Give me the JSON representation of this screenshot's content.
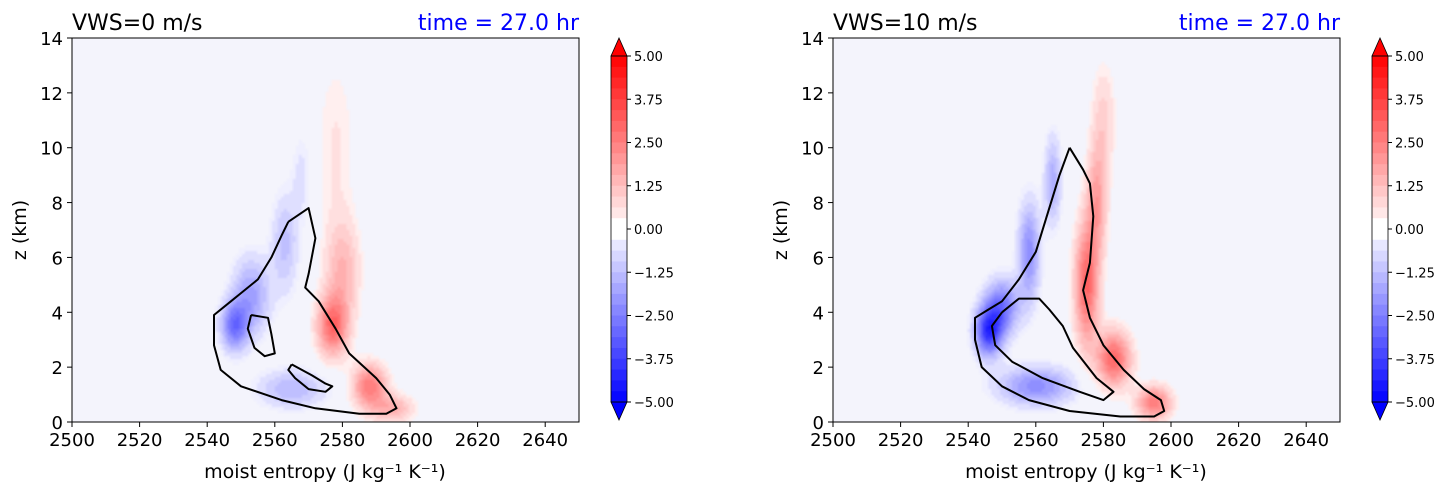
{
  "chart_data": [
    {
      "type": "heatmap",
      "title": "VWS=0 m/s",
      "time_label": "time = 27.0 hr",
      "xlabel": "moist entropy",
      "xlabel_unit": "(J kg⁻¹ K⁻¹)",
      "ylabel": "z (km)",
      "xlim": [
        2500,
        2650
      ],
      "ylim": [
        0,
        14
      ],
      "xticks": [
        "2500",
        "2520",
        "2540",
        "2560",
        "2580",
        "2600",
        "2620",
        "2640"
      ],
      "yticks": [
        "0",
        "2",
        "4",
        "6",
        "8",
        "10",
        "12",
        "14"
      ],
      "colorbar": {
        "range": [
          -5,
          5
        ],
        "ticks": [
          "5.00",
          "3.75",
          "2.50",
          "1.25",
          "0.00",
          "−1.25",
          "−2.50",
          "−3.75",
          "−5.00"
        ],
        "low_color": "#0000ff",
        "mid_color": "#ffffff",
        "high_color": "#ff0000"
      },
      "blobs": [
        {
          "sign": -1,
          "amp": 2.6,
          "x": 2548,
          "y": 3.5,
          "sx": 4.0,
          "sy": 0.9,
          "rot": 0
        },
        {
          "sign": -1,
          "amp": 1.8,
          "x": 2553,
          "y": 4.6,
          "sx": 5.5,
          "sy": 1.4,
          "rot": 25
        },
        {
          "sign": -1,
          "amp": 1.2,
          "x": 2563,
          "y": 6.5,
          "sx": 4.0,
          "sy": 1.8,
          "rot": 20
        },
        {
          "sign": -1,
          "amp": 0.6,
          "x": 2568,
          "y": 9.0,
          "sx": 3.0,
          "sy": 1.6,
          "rot": 10
        },
        {
          "sign": -1,
          "amp": 1.4,
          "x": 2565,
          "y": 1.2,
          "sx": 10.0,
          "sy": 0.7,
          "rot": -15
        },
        {
          "sign": 1,
          "amp": 2.8,
          "x": 2577,
          "y": 3.5,
          "sx": 4.5,
          "sy": 1.1,
          "rot": -35
        },
        {
          "sign": 1,
          "amp": 2.6,
          "x": 2588,
          "y": 1.3,
          "sx": 5.0,
          "sy": 0.8,
          "rot": -30
        },
        {
          "sign": 1,
          "amp": 1.5,
          "x": 2595,
          "y": 0.5,
          "sx": 6.0,
          "sy": 0.5,
          "rot": 0
        },
        {
          "sign": 1,
          "amp": 1.4,
          "x": 2580,
          "y": 5.5,
          "sx": 5.0,
          "sy": 1.8,
          "rot": -20
        },
        {
          "sign": 1,
          "amp": 0.5,
          "x": 2578,
          "y": 10.0,
          "sx": 6.0,
          "sy": 3.5,
          "rot": 0
        }
      ],
      "contours": [
        [
          [
            2564,
            7.3
          ],
          [
            2570,
            7.8
          ],
          [
            2572,
            6.7
          ],
          [
            2570,
            5.4
          ],
          [
            2569,
            4.9
          ],
          [
            2573,
            4.4
          ],
          [
            2578,
            3.4
          ],
          [
            2582,
            2.5
          ],
          [
            2590,
            1.6
          ],
          [
            2594,
            1.0
          ],
          [
            2596,
            0.5
          ],
          [
            2593,
            0.3
          ],
          [
            2585,
            0.3
          ],
          [
            2572,
            0.5
          ],
          [
            2562,
            0.8
          ],
          [
            2550,
            1.3
          ],
          [
            2544,
            1.9
          ],
          [
            2542,
            2.8
          ],
          [
            2542,
            3.9
          ],
          [
            2547,
            4.4
          ],
          [
            2550,
            4.7
          ],
          [
            2555,
            5.2
          ],
          [
            2559,
            6.0
          ],
          [
            2562,
            6.8
          ],
          [
            2564,
            7.3
          ]
        ],
        [
          [
            2553,
            3.9
          ],
          [
            2558,
            3.8
          ],
          [
            2559,
            3.2
          ],
          [
            2560,
            2.5
          ],
          [
            2557,
            2.4
          ],
          [
            2554,
            2.7
          ],
          [
            2552,
            3.4
          ],
          [
            2553,
            3.9
          ]
        ],
        [
          [
            2565,
            2.1
          ],
          [
            2571,
            1.7
          ],
          [
            2575,
            1.4
          ],
          [
            2577,
            1.3
          ],
          [
            2575,
            1.1
          ],
          [
            2570,
            1.2
          ],
          [
            2566,
            1.6
          ],
          [
            2564,
            1.9
          ],
          [
            2565,
            2.1
          ]
        ]
      ]
    },
    {
      "type": "heatmap",
      "title": "VWS=10 m/s",
      "time_label": "time = 27.0 hr",
      "xlabel": "moist entropy",
      "xlabel_unit": "(J kg⁻¹ K⁻¹)",
      "ylabel": "z (km)",
      "xlim": [
        2500,
        2650
      ],
      "ylim": [
        0,
        14
      ],
      "xticks": [
        "2500",
        "2520",
        "2540",
        "2560",
        "2580",
        "2600",
        "2620",
        "2640"
      ],
      "yticks": [
        "0",
        "2",
        "4",
        "6",
        "8",
        "10",
        "12",
        "14"
      ],
      "colorbar": {
        "range": [
          -5,
          5
        ],
        "ticks": [
          "5.00",
          "3.75",
          "2.50",
          "1.25",
          "0.00",
          "−1.25",
          "−2.50",
          "−3.75",
          "−5.00"
        ],
        "low_color": "#0000ff",
        "mid_color": "#ffffff",
        "high_color": "#ff0000"
      },
      "blobs": [
        {
          "sign": -1,
          "amp": 3.8,
          "x": 2546,
          "y": 3.3,
          "sx": 4.0,
          "sy": 0.9,
          "rot": 0
        },
        {
          "sign": -1,
          "amp": 2.6,
          "x": 2550,
          "y": 4.2,
          "sx": 5.0,
          "sy": 1.0,
          "rot": 30
        },
        {
          "sign": -1,
          "amp": 2.2,
          "x": 2558,
          "y": 6.2,
          "sx": 3.2,
          "sy": 1.8,
          "rot": 20
        },
        {
          "sign": -1,
          "amp": 1.6,
          "x": 2565,
          "y": 8.8,
          "sx": 2.5,
          "sy": 1.6,
          "rot": 10
        },
        {
          "sign": -1,
          "amp": 2.2,
          "x": 2560,
          "y": 1.3,
          "sx": 11.0,
          "sy": 0.7,
          "rot": -12
        },
        {
          "sign": 1,
          "amp": 3.0,
          "x": 2575,
          "y": 5.0,
          "sx": 3.5,
          "sy": 2.2,
          "rot": -15
        },
        {
          "sign": 1,
          "amp": 3.0,
          "x": 2583,
          "y": 2.3,
          "sx": 5.0,
          "sy": 1.0,
          "rot": -35
        },
        {
          "sign": 1,
          "amp": 2.6,
          "x": 2595,
          "y": 0.7,
          "sx": 5.0,
          "sy": 0.6,
          "rot": -10
        },
        {
          "sign": 1,
          "amp": 1.8,
          "x": 2578,
          "y": 8.0,
          "sx": 3.0,
          "sy": 2.0,
          "rot": 0
        },
        {
          "sign": 1,
          "amp": 0.9,
          "x": 2580,
          "y": 11.0,
          "sx": 3.5,
          "sy": 2.0,
          "rot": 0
        }
      ],
      "contours": [
        [
          [
            2570,
            10.0
          ],
          [
            2574,
            9.2
          ],
          [
            2576,
            8.7
          ],
          [
            2577,
            7.5
          ],
          [
            2576,
            5.8
          ],
          [
            2574,
            4.8
          ],
          [
            2576,
            3.8
          ],
          [
            2580,
            2.8
          ],
          [
            2586,
            1.9
          ],
          [
            2592,
            1.2
          ],
          [
            2597,
            0.8
          ],
          [
            2598,
            0.4
          ],
          [
            2595,
            0.2
          ],
          [
            2585,
            0.2
          ],
          [
            2570,
            0.4
          ],
          [
            2558,
            0.8
          ],
          [
            2550,
            1.3
          ],
          [
            2544,
            2.0
          ],
          [
            2542,
            3.0
          ],
          [
            2542,
            3.8
          ],
          [
            2546,
            4.1
          ],
          [
            2550,
            4.4
          ],
          [
            2555,
            5.2
          ],
          [
            2560,
            6.2
          ],
          [
            2564,
            7.8
          ],
          [
            2567,
            9.0
          ],
          [
            2570,
            10.0
          ]
        ],
        [
          [
            2550,
            4.0
          ],
          [
            2555,
            4.5
          ],
          [
            2561,
            4.5
          ],
          [
            2564,
            4.1
          ],
          [
            2568,
            3.5
          ],
          [
            2571,
            2.7
          ],
          [
            2578,
            1.6
          ],
          [
            2583,
            1.1
          ],
          [
            2580,
            0.8
          ],
          [
            2573,
            1.1
          ],
          [
            2562,
            1.6
          ],
          [
            2553,
            2.2
          ],
          [
            2548,
            2.8
          ],
          [
            2547,
            3.5
          ],
          [
            2550,
            4.0
          ]
        ]
      ]
    }
  ]
}
